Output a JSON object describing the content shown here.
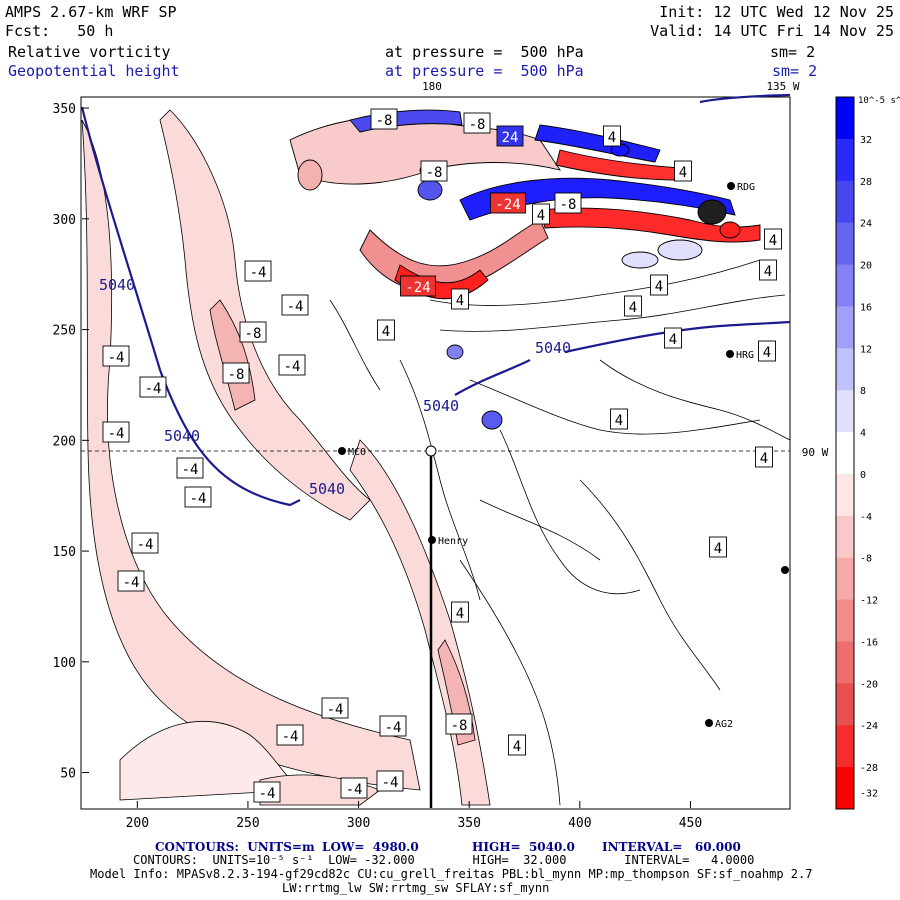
{
  "header": {
    "model": "AMPS 2.67-km WRF SP",
    "init": "Init: 12 UTC Wed 12 Nov 25",
    "forecast": "Fcst:   50 h",
    "valid": "Valid: 14 UTC Fri 14 Nov 25",
    "field1": "Relative vorticity",
    "field1_level": "at pressure =  500 hPa",
    "field1_sm": "sm= 2",
    "field2": "Geopotential height",
    "field2_level": "at pressure =  500 hPa",
    "field2_sm": "sm= 2",
    "top_lon_180": "180",
    "top_lon_135w": "135 W",
    "right_lat_90w": "90 W"
  },
  "axes": {
    "x_ticks": [
      "200",
      "250",
      "300",
      "350",
      "400",
      "450"
    ],
    "y_ticks": [
      "50",
      "100",
      "150",
      "200",
      "250",
      "300",
      "350"
    ]
  },
  "colorbar": {
    "unit": "10^-5 s^-1",
    "labels": [
      "32",
      "28",
      "24",
      "20",
      "16",
      "12",
      "8",
      "4",
      "0",
      "-4",
      "-8",
      "-12",
      "-16",
      "-20",
      "-24",
      "-28",
      "-32"
    ],
    "colors": [
      "#0000ff",
      "#2a2aff",
      "#4747f0",
      "#6464f0",
      "#8282f5",
      "#a0a0f8",
      "#c0c0fa",
      "#e0e0fd",
      "#ffffff",
      "#fde6e6",
      "#f9c8c8",
      "#f5aaaa",
      "#f08c8c",
      "#ec6e6e",
      "#e85050",
      "#f52d2d",
      "#ff0000"
    ]
  },
  "stations": [
    {
      "name": "Henry"
    },
    {
      "name": "HRG"
    },
    {
      "name": "RDG"
    },
    {
      "name": "AG2"
    },
    {
      "name": "MCO"
    }
  ],
  "contour_labels": {
    "height": [
      "5040",
      "5040",
      "5040",
      "5040",
      "5040"
    ],
    "vorticity": [
      "-4",
      "-4",
      "-4",
      "-4",
      "-4",
      "-4",
      "-4",
      "-4",
      "-4",
      "-4",
      "-4",
      "-4",
      "-4",
      "-4",
      "-4",
      "-4",
      "-8",
      "-8",
      "-8",
      "-8",
      "-8",
      "-8",
      "-8",
      "-24",
      "-24",
      "24",
      "4",
      "4",
      "4",
      "4",
      "4",
      "4",
      "4",
      "4",
      "4",
      "4",
      "4",
      "4",
      "4",
      "4",
      "4",
      "4"
    ]
  },
  "footer": {
    "line1_contours": "CONTOURS:  UNITS=m",
    "line1_low": "LOW=  4980.0",
    "line1_high": "HIGH=  5040.0",
    "line1_interval": "INTERVAL=   60.000",
    "line2": "CONTOURS:  UNITS=10⁻⁵ s⁻¹  LOW= -32.000        HIGH=  32.000        INTERVAL=   4.0000",
    "line3": "Model Info: MPASv8.2.3-194-gf29cd82c CU:cu_grell_freitas PBL:bl_mynn MP:mp_thompson SF:sf_noahmp 2.7",
    "line4": "LW:rrtmg_lw SW:rrtmg_sw SFLAY:sf_mynn"
  }
}
